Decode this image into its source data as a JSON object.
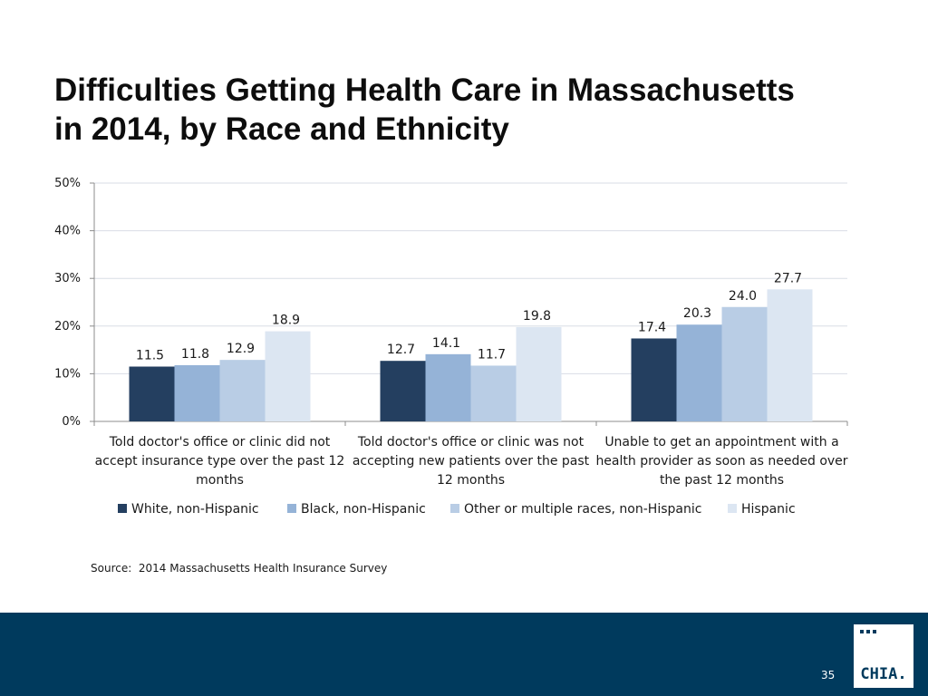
{
  "slide": {
    "title_line1": "Difficulties Getting Health Care in Massachusetts",
    "title_line2": "in 2014, by Race and Ethnicity",
    "source": "Source:  2014 Massachusetts Health Insurance Survey",
    "page_number": "35",
    "logo_text": "CHIA."
  },
  "colors": {
    "band": "#003a5d",
    "axis": "#8c8c8c",
    "grid": "#d9dde6"
  },
  "chart_data": {
    "type": "bar",
    "title": "Difficulties Getting Health Care in Massachusetts in 2014, by Race and Ethnicity",
    "xlabel": "",
    "ylabel": "",
    "ylim": [
      0,
      50
    ],
    "y_ticks": [
      0,
      10,
      20,
      30,
      40,
      50
    ],
    "y_tick_labels": [
      "0%",
      "10%",
      "20%",
      "30%",
      "40%",
      "50%"
    ],
    "grid": true,
    "legend_position": "bottom",
    "categories": [
      [
        "Told doctor's office or clinic did not",
        "accept insurance type over the past 12",
        "months"
      ],
      [
        "Told doctor's office or clinic was not",
        "accepting new patients over the past",
        "12 months"
      ],
      [
        "Unable to get an appointment with a",
        "health provider as soon as needed over",
        "the past 12 months"
      ]
    ],
    "series": [
      {
        "name": "White, non-Hispanic",
        "color": "#243f60",
        "values": [
          11.5,
          12.7,
          17.4
        ],
        "labels": [
          "11.5",
          "12.7",
          "17.4"
        ]
      },
      {
        "name": "Black, non-Hispanic",
        "color": "#95b3d7",
        "values": [
          11.8,
          14.1,
          20.3
        ],
        "labels": [
          "11.8",
          "14.1",
          "20.3"
        ]
      },
      {
        "name": "Other or multiple races, non-Hispanic",
        "color": "#b9cde5",
        "values": [
          12.9,
          11.7,
          24.0
        ],
        "labels": [
          "12.9",
          "11.7",
          "24.0"
        ]
      },
      {
        "name": "Hispanic",
        "color": "#dce6f2",
        "values": [
          18.9,
          19.8,
          27.7
        ],
        "labels": [
          "18.9",
          "19.8",
          "27.7"
        ]
      }
    ]
  }
}
